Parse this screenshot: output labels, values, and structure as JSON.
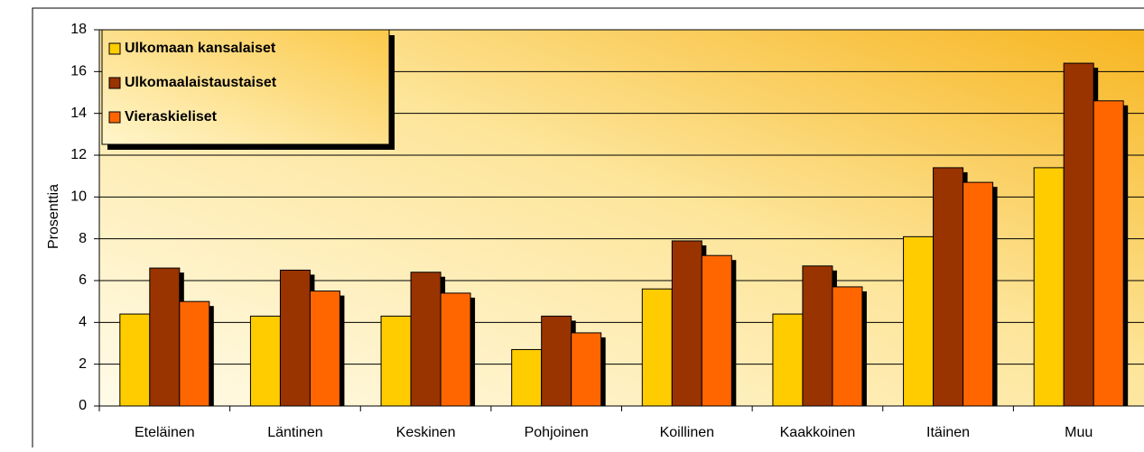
{
  "chart_data": {
    "type": "bar",
    "y_label": "Prosenttia",
    "categories": [
      "Eteläinen",
      "Läntinen",
      "Keskinen",
      "Pohjoinen",
      "Koillinen",
      "Kaakkoinen",
      "Itäinen",
      "Muu"
    ],
    "series": [
      {
        "name": "Ulkomaan kansalaiset",
        "color": "#ffcc00",
        "values": [
          4.4,
          4.3,
          4.3,
          2.7,
          5.6,
          4.4,
          8.1,
          11.4
        ]
      },
      {
        "name": "Ulkomaalaistaustaiset",
        "color": "#993300",
        "values": [
          6.6,
          6.5,
          6.4,
          4.3,
          7.9,
          6.7,
          11.4,
          16.4
        ]
      },
      {
        "name": "Vieraskieliset",
        "color": "#ff6600",
        "values": [
          5.0,
          5.5,
          5.4,
          3.5,
          7.2,
          5.7,
          10.7,
          14.6
        ]
      }
    ],
    "ylim": [
      0,
      18
    ],
    "yticks": [
      0,
      2,
      4,
      6,
      8,
      10,
      12,
      14,
      16,
      18
    ],
    "grid": true,
    "legend": "top-left"
  }
}
